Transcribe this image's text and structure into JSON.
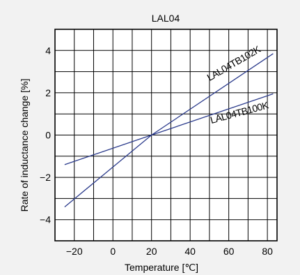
{
  "chart_data": {
    "type": "line",
    "title": "LAL04",
    "xlabel": "Temperature [℃]",
    "ylabel": "Rate of inductance change [%]",
    "xlim": [
      -30,
      85
    ],
    "ylim": [
      -5,
      5
    ],
    "x_ticks": [
      -20,
      0,
      20,
      40,
      60,
      80
    ],
    "x_tick_labels": [
      "−20",
      "0",
      "20",
      "40",
      "60",
      "80"
    ],
    "y_ticks": [
      -4,
      -2,
      0,
      2,
      4
    ],
    "y_tick_labels": [
      "−4",
      "−2",
      "0",
      "2",
      "4"
    ],
    "grid": true,
    "series": [
      {
        "name": "LAL04TB102K",
        "color": "#2b3b8c",
        "x": [
          -25,
          20,
          83
        ],
        "y": [
          -3.4,
          0,
          3.85
        ]
      },
      {
        "name": "LAL04TB100K",
        "color": "#2b3b8c",
        "x": [
          -25,
          20,
          83
        ],
        "y": [
          -1.4,
          0,
          1.95
        ]
      }
    ]
  }
}
